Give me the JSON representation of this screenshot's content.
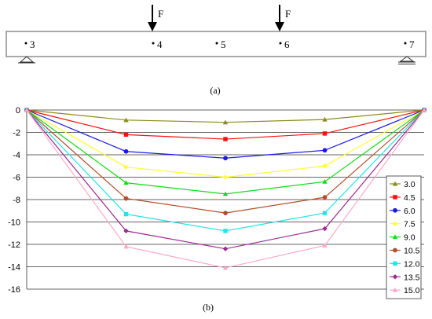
{
  "beam": {
    "load_label": "F",
    "node_labels": [
      "3",
      "4",
      "5",
      "6",
      "7"
    ]
  },
  "captions": {
    "a": "(a)",
    "b": "(b)"
  },
  "chart_data": {
    "type": "line",
    "title": "",
    "xlabel": "",
    "ylabel": "",
    "x": [
      3,
      4,
      5,
      6,
      7
    ],
    "ylim": [
      -16,
      0
    ],
    "yticks": [
      0,
      -2,
      -4,
      -6,
      -8,
      -10,
      -12,
      -14,
      -16
    ],
    "grid": true,
    "legend": "right",
    "series": [
      {
        "name": "3.0",
        "color": "#8B8B1A",
        "marker": "triangle",
        "values": [
          0,
          -0.9,
          -1.1,
          -0.85,
          0
        ]
      },
      {
        "name": "4.5",
        "color": "#FF1010",
        "marker": "square",
        "values": [
          0,
          -2.2,
          -2.6,
          -2.1,
          0
        ]
      },
      {
        "name": "6.0",
        "color": "#1A1AE6",
        "marker": "circle",
        "values": [
          0,
          -3.7,
          -4.3,
          -3.6,
          0
        ]
      },
      {
        "name": "7.5",
        "color": "#FFFF33",
        "marker": "diamond",
        "values": [
          0,
          -5.1,
          -6.0,
          -5.0,
          0
        ]
      },
      {
        "name": "9.0",
        "color": "#11DD11",
        "marker": "triangle",
        "values": [
          0,
          -6.5,
          -7.5,
          -6.4,
          0
        ]
      },
      {
        "name": "10.5",
        "color": "#B0502A",
        "marker": "circle",
        "values": [
          0,
          -7.9,
          -9.2,
          -7.8,
          0
        ]
      },
      {
        "name": "12.0",
        "color": "#22E5E5",
        "marker": "square",
        "values": [
          0,
          -9.3,
          -10.8,
          -9.2,
          0
        ]
      },
      {
        "name": "13.5",
        "color": "#9B2A8F",
        "marker": "diamond",
        "values": [
          0,
          -10.8,
          -12.4,
          -10.6,
          0
        ]
      },
      {
        "name": "15.0",
        "color": "#FFA8C8",
        "marker": "triangle",
        "values": [
          0,
          -12.2,
          -14.1,
          -12.1,
          0
        ]
      }
    ]
  }
}
